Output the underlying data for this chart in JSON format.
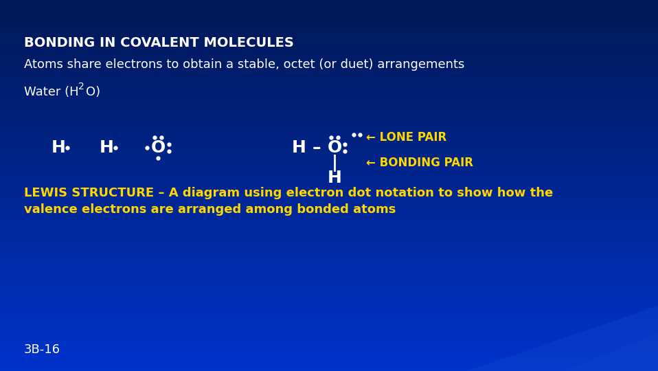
{
  "bg_color_top": "#001040",
  "bg_color_main": "#0033CC",
  "title": "BONDING IN COVALENT MOLECULES",
  "title_color": "#FFFFFF",
  "title_fontsize": 14,
  "subtitle": "Atoms share electrons to obtain a stable, octet (or duet) arrangements",
  "subtitle_color": "#FFFFFF",
  "subtitle_fontsize": 13,
  "water_color": "#FFFFFF",
  "water_fontsize": 13,
  "lewis_line1": "LEWIS STRUCTURE – A diagram using electron dot notation to show how the",
  "lewis_line2": "valence electrons are arranged among bonded atoms",
  "lewis_color": "#FFD700",
  "lewis_fontsize": 13,
  "footer": "3B-16",
  "footer_color": "#FFFFFF",
  "footer_fontsize": 13,
  "white": "#FFFFFF",
  "yellow": "#FFD700",
  "lone_pair_label": "← LONE PAIR",
  "bonding_pair_label": "← BONDING PAIR"
}
